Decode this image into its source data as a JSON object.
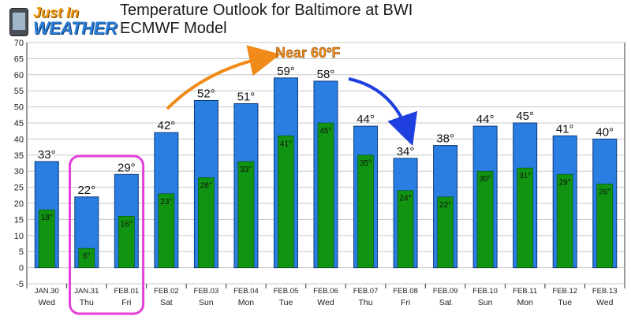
{
  "header": {
    "title_line1": "Temperature Outlook for Baltimore at BWI",
    "title_line2": "ECMWF Model",
    "logo_line1": "Just In",
    "logo_line2": "WEATHER"
  },
  "annotation": {
    "text": "Near 60ºF"
  },
  "colors": {
    "high_bar": "#2a7de1",
    "low_bar": "#119411",
    "highlight_box": "#e43fd8",
    "arrow_up": "#f08a18",
    "arrow_down": "#1f3fe0",
    "annotation_text": "#f08a18"
  },
  "chart_data": {
    "type": "bar",
    "categories": [
      "JAN.30",
      "JAN.31",
      "FEB.01",
      "FEB.02",
      "FEB.03",
      "FEB.04",
      "FEB.05",
      "FEB.06",
      "FEB.07",
      "FEB.08",
      "FEB.09",
      "FEB.10",
      "FEB.11",
      "FEB.12",
      "FEB.13"
    ],
    "days": [
      "Wed",
      "Thu",
      "Fri",
      "Sat",
      "Sun",
      "Mon",
      "Tue",
      "Wed",
      "Thu",
      "Fri",
      "Sat",
      "Sun",
      "Mon",
      "Tue",
      "Wed"
    ],
    "series": [
      {
        "key": "high",
        "values": [
          33,
          22,
          29,
          42,
          52,
          51,
          59,
          58,
          44,
          34,
          38,
          44,
          45,
          41,
          40
        ]
      },
      {
        "key": "low",
        "values": [
          18,
          6,
          16,
          23,
          28,
          33,
          41,
          45,
          35,
          24,
          22,
          30,
          31,
          29,
          26
        ]
      }
    ],
    "high_labels": [
      "33°",
      "22°",
      "29°",
      "42°",
      "52°",
      "51°",
      "59°",
      "58°",
      "44°",
      "34°",
      "38°",
      "44°",
      "45°",
      "41°",
      "40°"
    ],
    "low_labels": [
      "18°",
      "6°",
      "16°",
      "23°",
      "28°",
      "33°",
      "41°",
      "45°",
      "35°",
      "24°",
      "22°",
      "30°",
      "31°",
      "29°",
      "26°"
    ],
    "ylim": [
      -5,
      70
    ],
    "yticks": [
      "-5",
      "0",
      "5",
      "10",
      "15",
      "20",
      "25",
      "30",
      "35",
      "40",
      "45",
      "50",
      "55",
      "60",
      "65",
      "70"
    ],
    "grid": true,
    "highlighted_categories": [
      "JAN.31",
      "FEB.01"
    ]
  }
}
